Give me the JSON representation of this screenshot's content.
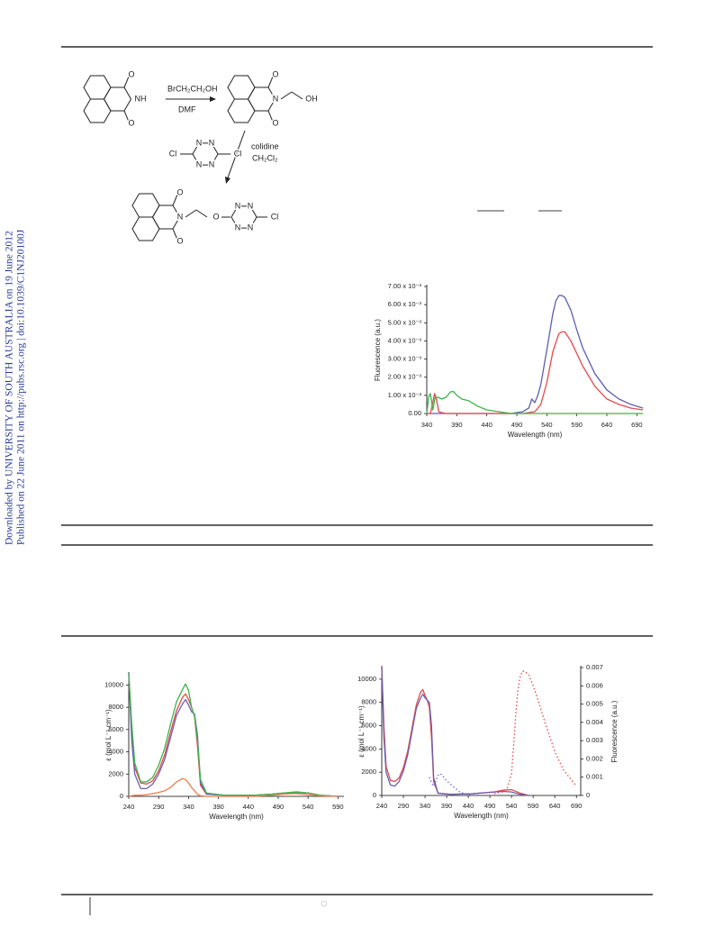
{
  "sidebar": [
    "Downloaded by UNIVERSITY OF SOUTH AUSTRALIA on 19 June 2012",
    "Published on 22 June 2011 on http://pubs.rsc.org | doi:10.1039/C1NJ20100J"
  ],
  "scheme": {
    "reagents": [
      "BrCH₂CH₂OH",
      "DMF",
      "colidine",
      "CH₂Cl₂"
    ],
    "atoms": [
      "O",
      "NH",
      "O",
      "O",
      "N",
      "OH",
      "O",
      "N",
      "N",
      "Cl",
      "N",
      "N",
      "Cl",
      "O",
      "N",
      "O",
      "O",
      "N",
      "N",
      "Cl",
      "N",
      "N"
    ]
  },
  "chart_data": [
    {
      "type": "line",
      "x_label": "Wavelength (nm)",
      "y_label": "Fluorescence (a.u.)",
      "xlim": [
        340,
        700
      ],
      "xticks": [
        340,
        390,
        440,
        490,
        540,
        590,
        640,
        690
      ],
      "ylim": [
        0,
        0.007
      ],
      "yticks": [
        {
          "value": 0,
          "label": "0.00"
        },
        {
          "value": 0.001,
          "label": "1.00 x 10⁻³"
        },
        {
          "value": 0.002,
          "label": "2.00 x 10⁻³"
        },
        {
          "value": 0.003,
          "label": "3.00 x 10⁻³"
        },
        {
          "value": 0.004,
          "label": "4.00 x 10⁻³"
        },
        {
          "value": 0.005,
          "label": "5.00 x 10⁻³"
        },
        {
          "value": 0.006,
          "label": "6.00 x 10⁻³"
        },
        {
          "value": 0.007,
          "label": "7.00 x 10⁻³"
        }
      ],
      "series": [
        {
          "color": "#5d5fb0",
          "x": [
            340,
            480,
            500,
            510,
            515,
            520,
            525,
            530,
            540,
            550,
            555,
            560,
            565,
            570,
            580,
            590,
            600,
            620,
            640,
            660,
            680,
            700
          ],
          "values": [
            0,
            0,
            0.0001,
            0.0003,
            0.0008,
            0.0006,
            0.001,
            0.0016,
            0.0035,
            0.0055,
            0.0062,
            0.0065,
            0.0065,
            0.0064,
            0.0057,
            0.0046,
            0.0036,
            0.0022,
            0.0013,
            0.0008,
            0.0005,
            0.0003
          ]
        },
        {
          "color": "#e8474a",
          "x": [
            340,
            346,
            350,
            353,
            356,
            360,
            370,
            500,
            520,
            530,
            540,
            550,
            560,
            565,
            570,
            580,
            590,
            600,
            620,
            640,
            660,
            680,
            700
          ],
          "values": [
            0,
            0,
            0.0006,
            0.0011,
            0.0008,
            0.0001,
            0,
            0,
            0.0001,
            0.0005,
            0.0017,
            0.0034,
            0.0044,
            0.0045,
            0.0045,
            0.004,
            0.0033,
            0.0026,
            0.0015,
            0.0008,
            0.0005,
            0.0003,
            0.0002
          ]
        },
        {
          "color": "#3bb54a",
          "x": [
            340,
            343,
            346,
            350,
            354,
            358,
            365,
            372,
            380,
            385,
            390,
            398,
            410,
            425,
            440,
            460,
            480,
            700
          ],
          "values": [
            0,
            0.0009,
            0.0011,
            0.0002,
            0.0009,
            0.0009,
            0.0008,
            0.0009,
            0.0012,
            0.0012,
            0.001,
            0.0008,
            0.0007,
            0.0004,
            0.0002,
            0.0001,
            0,
            0
          ]
        }
      ]
    },
    {
      "type": "line",
      "x_label": "Wavelength (nm)",
      "y_label": "ε (mol L⁻¹ cm⁻¹)",
      "xlim": [
        240,
        600
      ],
      "xticks": [
        240,
        290,
        340,
        390,
        440,
        490,
        540,
        590
      ],
      "ylim": [
        0,
        11000
      ],
      "yticks": [
        0,
        2000,
        4000,
        6000,
        8000,
        10000
      ],
      "x": [
        240,
        245,
        250,
        260,
        270,
        280,
        290,
        300,
        310,
        320,
        330,
        335,
        340,
        345,
        350,
        355,
        360,
        370,
        400,
        450,
        480,
        500,
        520,
        540,
        560,
        590
      ],
      "series": [
        {
          "color": "#e8474a",
          "values": [
            11000,
            6000,
            2600,
            1200,
            1100,
            1400,
            2300,
            3700,
            5800,
            7700,
            8900,
            9200,
            8700,
            8000,
            7200,
            4500,
            1000,
            200,
            100,
            100,
            200,
            300,
            400,
            300,
            100,
            0
          ]
        },
        {
          "color": "#6a5fb0",
          "values": [
            11000,
            5000,
            2000,
            700,
            700,
            1100,
            2000,
            3300,
            5300,
            7300,
            8300,
            8700,
            8200,
            7600,
            7400,
            5500,
            1200,
            200,
            100,
            100,
            200,
            300,
            350,
            300,
            100,
            0
          ]
        },
        {
          "color": "#3bb54a",
          "values": [
            11000,
            6500,
            3000,
            1300,
            1300,
            1700,
            2800,
            4300,
            6500,
            8500,
            9600,
            10100,
            9500,
            8000,
            7200,
            5000,
            1500,
            300,
            100,
            100,
            200,
            300,
            400,
            300,
            100,
            0
          ]
        },
        {
          "color": "#f07a50",
          "values": [
            0,
            50,
            100,
            100,
            150,
            250,
            350,
            500,
            800,
            1300,
            1600,
            1500,
            1200,
            800,
            500,
            200,
            50,
            0,
            0,
            0,
            100,
            200,
            250,
            150,
            50,
            0
          ]
        }
      ]
    },
    {
      "type": "line",
      "x_label": "Wavelength (nm)",
      "y_label": "ε (mol L⁻¹ cm⁻¹)",
      "y2_label": "Fluorescence (a.u.)",
      "xlim": [
        240,
        700
      ],
      "xticks": [
        240,
        290,
        340,
        390,
        440,
        490,
        540,
        590,
        640,
        690
      ],
      "ylim": [
        0,
        11000
      ],
      "yticks": [
        0,
        2000,
        4000,
        6000,
        8000,
        10000
      ],
      "y2lim": [
        0,
        0.007
      ],
      "y2ticks": [
        0,
        0.001,
        0.002,
        0.003,
        0.004,
        0.005,
        0.006,
        0.007
      ],
      "series": [
        {
          "color": "#e8474a",
          "x": [
            240,
            245,
            250,
            260,
            270,
            280,
            290,
            300,
            310,
            320,
            330,
            335,
            340,
            345,
            350,
            355,
            360,
            370,
            400,
            450,
            500,
            520,
            540,
            560,
            580
          ],
          "values": [
            11000,
            6000,
            2500,
            1300,
            1200,
            1500,
            2400,
            3800,
            5800,
            7800,
            8900,
            9100,
            8600,
            8200,
            7600,
            5000,
            1200,
            200,
            100,
            150,
            300,
            450,
            500,
            200,
            0
          ]
        },
        {
          "color": "#6a5fb0",
          "x": [
            240,
            245,
            250,
            260,
            270,
            280,
            290,
            300,
            310,
            320,
            330,
            335,
            340,
            345,
            350,
            355,
            360,
            370,
            400,
            450,
            500,
            520,
            540,
            560,
            580
          ],
          "values": [
            11000,
            5000,
            2000,
            900,
            800,
            1200,
            2100,
            3500,
            5500,
            7500,
            8400,
            8700,
            8400,
            8200,
            8000,
            6000,
            1500,
            200,
            100,
            150,
            300,
            350,
            300,
            100,
            0
          ]
        },
        {
          "color": "#6b6bd6",
          "axis": "y2",
          "line_style": "dotted",
          "x": [
            350,
            355,
            360,
            365,
            370,
            375,
            380,
            390,
            400,
            410,
            420,
            430,
            440,
            450
          ],
          "values": [
            0.001,
            0.0007,
            0.0005,
            0.0008,
            0.0011,
            0.0012,
            0.0011,
            0.0008,
            0.0006,
            0.0004,
            0.0002,
            0.0001,
            5e-05,
            0
          ]
        },
        {
          "color": "#e8474a",
          "axis": "y2",
          "line_style": "dotted",
          "x": [
            500,
            520,
            530,
            540,
            545,
            550,
            555,
            560,
            565,
            570,
            580,
            590,
            600,
            620,
            640,
            660,
            680,
            690
          ],
          "values": [
            0.0001,
            0.0002,
            0.0004,
            0.0012,
            0.0028,
            0.0045,
            0.0058,
            0.0065,
            0.0068,
            0.0068,
            0.0066,
            0.006,
            0.0053,
            0.0038,
            0.0024,
            0.0014,
            0.0008,
            0.0005
          ]
        }
      ]
    }
  ]
}
